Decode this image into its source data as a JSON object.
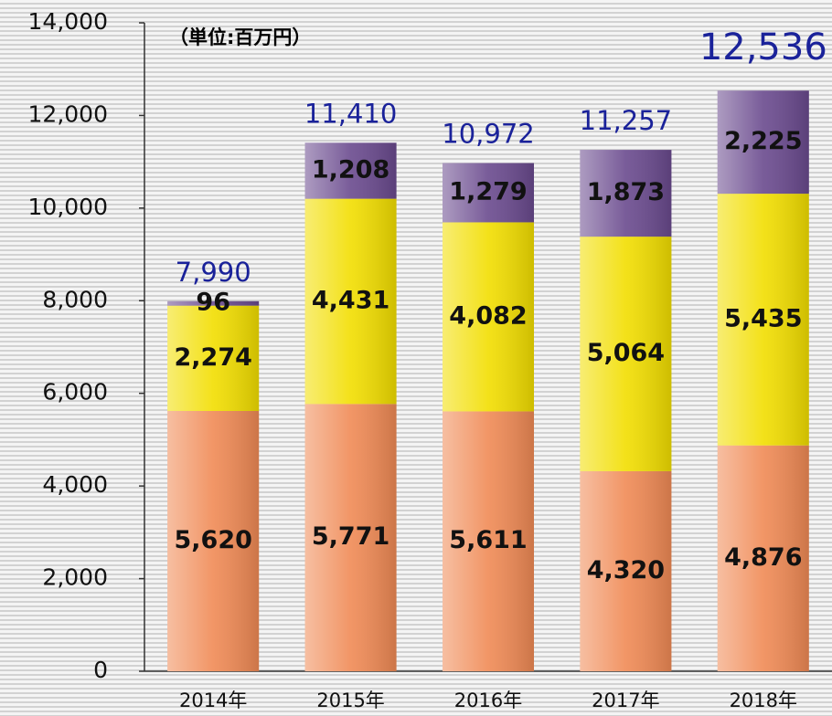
{
  "chart_data": {
    "type": "stacked_bar",
    "annotation": "（単位:百万円）",
    "categories": [
      "2014年",
      "2015年",
      "2016年",
      "2017年",
      "2018年"
    ],
    "series": [
      {
        "color": "#f08a55",
        "values": [
          5620,
          5771,
          5611,
          4320,
          4876
        ],
        "value_labels": [
          "5,620",
          "5,771",
          "5,611",
          "4,320",
          "4,876"
        ]
      },
      {
        "color": "#f2de00",
        "values": [
          2274,
          4431,
          4082,
          5064,
          5435
        ],
        "value_labels": [
          "2,274",
          "4,431",
          "4,082",
          "5,064",
          "5,435"
        ]
      },
      {
        "color": "#6a4a8e",
        "values": [
          96,
          1208,
          1279,
          1873,
          2225
        ],
        "value_labels": [
          "96",
          "1,208",
          "1,279",
          "1,873",
          "2,225"
        ]
      }
    ],
    "totals": {
      "values": [
        7990,
        11410,
        10972,
        11257,
        12536
      ],
      "value_labels": [
        "7,990",
        "11,410",
        "10,972",
        "11,257",
        "12,536"
      ]
    },
    "ylim": [
      0,
      14000
    ],
    "yticks": [
      0,
      {
        "value": 2000,
        "label": "2,000"
      },
      {
        "value": 4000,
        "label": "4,000"
      },
      {
        "value": 6000,
        "label": "6,000"
      },
      {
        "value": 8000,
        "label": "8,000"
      },
      {
        "value": 10000,
        "label": "10,000"
      },
      {
        "value": 12000,
        "label": "12,000"
      },
      {
        "value": 14000,
        "label": "14,000"
      }
    ]
  }
}
